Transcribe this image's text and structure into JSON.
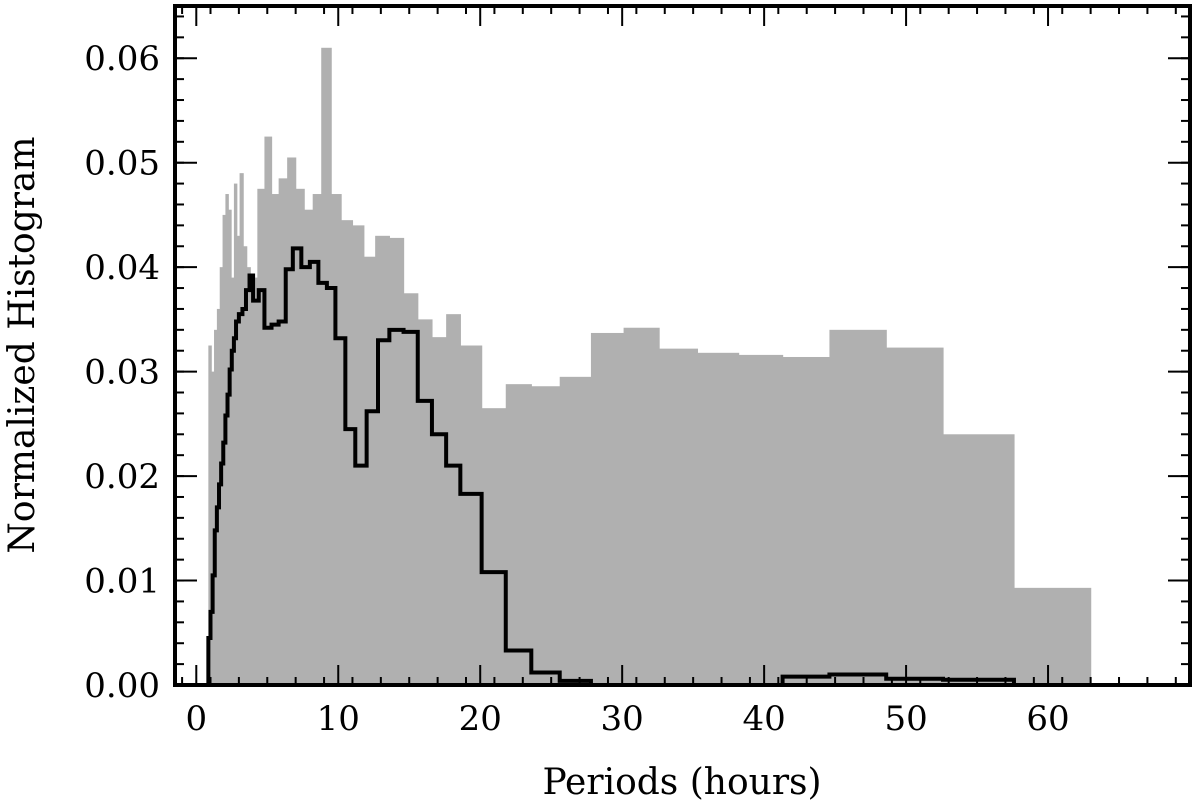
{
  "chart_data": {
    "type": "bar",
    "xlabel": "Periods (hours)",
    "ylabel": "Normalized Histogram",
    "xlim": [
      -1.5,
      70
    ],
    "ylim": [
      0.0,
      0.065
    ],
    "xticks": [
      0,
      10,
      20,
      30,
      40,
      50,
      60
    ],
    "yticks": [
      0.0,
      0.01,
      0.02,
      0.03,
      0.04,
      0.05,
      0.06
    ],
    "ytick_labels": [
      "0.00",
      "0.01",
      "0.02",
      "0.03",
      "0.04",
      "0.05",
      "0.06"
    ],
    "grid": false,
    "series": [
      {
        "style": "filled-histogram",
        "color": "#b0b0b0",
        "bins": [
          [
            0.85,
            1.05,
            0.0325
          ],
          [
            1.05,
            1.25,
            0.03
          ],
          [
            1.25,
            1.45,
            0.034
          ],
          [
            1.45,
            1.65,
            0.036
          ],
          [
            1.65,
            1.85,
            0.04
          ],
          [
            1.85,
            2.05,
            0.045
          ],
          [
            2.05,
            2.25,
            0.047
          ],
          [
            2.25,
            2.45,
            0.0455
          ],
          [
            2.45,
            2.65,
            0.039
          ],
          [
            2.65,
            2.85,
            0.048
          ],
          [
            2.85,
            3.05,
            0.043
          ],
          [
            3.05,
            3.3,
            0.049
          ],
          [
            3.3,
            3.55,
            0.042
          ],
          [
            3.55,
            3.8,
            0.04
          ],
          [
            3.8,
            4.3,
            0.039
          ],
          [
            4.3,
            4.8,
            0.0475
          ],
          [
            4.8,
            5.3,
            0.0525
          ],
          [
            5.3,
            5.8,
            0.047
          ],
          [
            5.8,
            6.4,
            0.0485
          ],
          [
            6.4,
            7.0,
            0.0505
          ],
          [
            7.0,
            7.6,
            0.0475
          ],
          [
            7.6,
            8.2,
            0.0455
          ],
          [
            8.2,
            8.8,
            0.047
          ],
          [
            8.8,
            9.5,
            0.061
          ],
          [
            9.5,
            10.2,
            0.047
          ],
          [
            10.2,
            11.0,
            0.0445
          ],
          [
            11.0,
            11.8,
            0.044
          ],
          [
            11.8,
            12.6,
            0.041
          ],
          [
            12.6,
            13.6,
            0.043
          ],
          [
            13.6,
            14.6,
            0.0428
          ],
          [
            14.6,
            15.6,
            0.0375
          ],
          [
            15.6,
            16.6,
            0.035
          ],
          [
            16.6,
            17.6,
            0.0333
          ],
          [
            17.6,
            18.6,
            0.0355
          ],
          [
            18.6,
            20.1,
            0.0325
          ],
          [
            20.1,
            21.8,
            0.0265
          ],
          [
            21.8,
            23.6,
            0.0288
          ],
          [
            23.6,
            25.6,
            0.0286
          ],
          [
            25.6,
            27.8,
            0.0295
          ],
          [
            27.8,
            30.1,
            0.0337
          ],
          [
            30.1,
            32.6,
            0.0342
          ],
          [
            32.6,
            35.3,
            0.0322
          ],
          [
            35.3,
            38.2,
            0.0318
          ],
          [
            38.2,
            41.3,
            0.0316
          ],
          [
            41.3,
            44.6,
            0.0314
          ],
          [
            44.6,
            48.6,
            0.034
          ],
          [
            48.6,
            52.6,
            0.0323
          ],
          [
            52.6,
            57.6,
            0.024
          ],
          [
            57.6,
            63.0,
            0.0093
          ]
        ]
      },
      {
        "style": "step-outline",
        "color": "#000000",
        "bins": [
          [
            0.85,
            1.0,
            0.0045
          ],
          [
            1.0,
            1.15,
            0.007
          ],
          [
            1.15,
            1.3,
            0.0105
          ],
          [
            1.3,
            1.45,
            0.0148
          ],
          [
            1.45,
            1.6,
            0.017
          ],
          [
            1.6,
            1.75,
            0.0192
          ],
          [
            1.75,
            1.9,
            0.0212
          ],
          [
            1.9,
            2.05,
            0.0232
          ],
          [
            2.05,
            2.2,
            0.0258
          ],
          [
            2.2,
            2.35,
            0.0278
          ],
          [
            2.35,
            2.5,
            0.0302
          ],
          [
            2.5,
            2.65,
            0.032
          ],
          [
            2.65,
            2.8,
            0.0332
          ],
          [
            2.8,
            3.0,
            0.0348
          ],
          [
            3.0,
            3.25,
            0.0355
          ],
          [
            3.25,
            3.5,
            0.036
          ],
          [
            3.5,
            3.75,
            0.0378
          ],
          [
            3.75,
            4.0,
            0.0392
          ],
          [
            4.0,
            4.4,
            0.0368
          ],
          [
            4.4,
            4.8,
            0.0378
          ],
          [
            4.8,
            5.3,
            0.0342
          ],
          [
            5.3,
            5.8,
            0.0345
          ],
          [
            5.8,
            6.3,
            0.0348
          ],
          [
            6.3,
            6.8,
            0.0398
          ],
          [
            6.8,
            7.4,
            0.0418
          ],
          [
            7.4,
            8.0,
            0.04
          ],
          [
            8.0,
            8.6,
            0.0405
          ],
          [
            8.6,
            9.2,
            0.0385
          ],
          [
            9.2,
            9.8,
            0.038
          ],
          [
            9.8,
            10.5,
            0.0332
          ],
          [
            10.5,
            11.2,
            0.0245
          ],
          [
            11.2,
            12.0,
            0.021
          ],
          [
            12.0,
            12.8,
            0.0262
          ],
          [
            12.8,
            13.6,
            0.033
          ],
          [
            13.6,
            14.6,
            0.034
          ],
          [
            14.6,
            15.6,
            0.0338
          ],
          [
            15.6,
            16.6,
            0.0272
          ],
          [
            16.6,
            17.6,
            0.024
          ],
          [
            17.6,
            18.6,
            0.021
          ],
          [
            18.6,
            20.1,
            0.0183
          ],
          [
            20.1,
            21.8,
            0.0108
          ],
          [
            21.8,
            23.6,
            0.0033
          ],
          [
            23.6,
            25.6,
            0.0012
          ],
          [
            25.6,
            27.8,
            0.0004
          ],
          [
            27.8,
            30.1,
            0.0
          ],
          [
            30.1,
            32.6,
            0.0
          ],
          [
            32.6,
            35.3,
            0.0
          ],
          [
            35.3,
            38.2,
            0.0
          ],
          [
            38.2,
            41.3,
            0.0
          ],
          [
            41.3,
            44.6,
            0.0008
          ],
          [
            44.6,
            48.6,
            0.001
          ],
          [
            48.6,
            52.6,
            0.0006
          ],
          [
            52.6,
            57.6,
            0.0005
          ]
        ]
      }
    ]
  }
}
